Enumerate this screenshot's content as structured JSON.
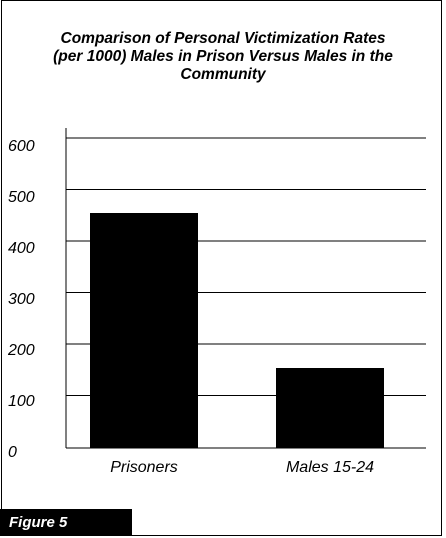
{
  "chart_data": {
    "type": "bar",
    "title": "Comparison of Personal Victimization Rates\n(per 1000) Males in Prison Versus Males in the\nCommunity",
    "categories": [
      "Prisoners",
      "Males 15-24"
    ],
    "values": [
      470,
      160
    ],
    "y_ticks": [
      600,
      500,
      400,
      300,
      200,
      100,
      0
    ],
    "colors": {
      "bar": "#000000",
      "grid": "#000000"
    }
  },
  "figure_label": "Figure 5"
}
